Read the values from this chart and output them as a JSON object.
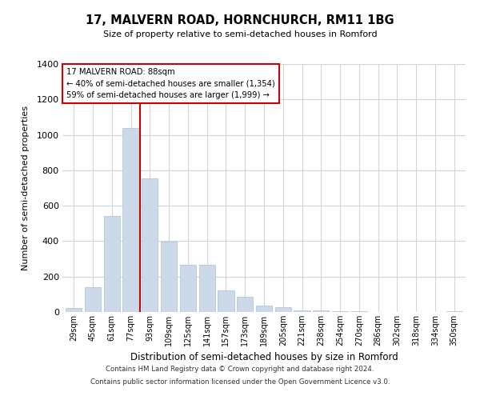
{
  "title": "17, MALVERN ROAD, HORNCHURCH, RM11 1BG",
  "subtitle": "Size of property relative to semi-detached houses in Romford",
  "xlabel": "Distribution of semi-detached houses by size in Romford",
  "ylabel": "Number of semi-detached properties",
  "bar_color": "#ccd9e8",
  "bar_edge_color": "#aabfd4",
  "categories": [
    "29sqm",
    "45sqm",
    "61sqm",
    "77sqm",
    "93sqm",
    "109sqm",
    "125sqm",
    "141sqm",
    "157sqm",
    "173sqm",
    "189sqm",
    "205sqm",
    "221sqm",
    "238sqm",
    "254sqm",
    "270sqm",
    "286sqm",
    "302sqm",
    "318sqm",
    "334sqm",
    "350sqm"
  ],
  "values": [
    22,
    140,
    540,
    1040,
    755,
    397,
    265,
    265,
    120,
    85,
    35,
    28,
    10,
    8,
    4,
    3,
    2,
    1,
    1,
    0,
    5
  ],
  "ylim": [
    0,
    1400
  ],
  "yticks": [
    0,
    200,
    400,
    600,
    800,
    1000,
    1200,
    1400
  ],
  "annotation_line1": "17 MALVERN ROAD: 88sqm",
  "annotation_line2": "← 40% of semi-detached houses are smaller (1,354)",
  "annotation_line3": "59% of semi-detached houses are larger (1,999) →",
  "vline_color": "#cc0000",
  "box_color": "#cc0000",
  "footer1": "Contains HM Land Registry data © Crown copyright and database right 2024.",
  "footer2": "Contains public sector information licensed under the Open Government Licence v3.0.",
  "background_color": "#ffffff",
  "grid_color": "#cdd5e0"
}
